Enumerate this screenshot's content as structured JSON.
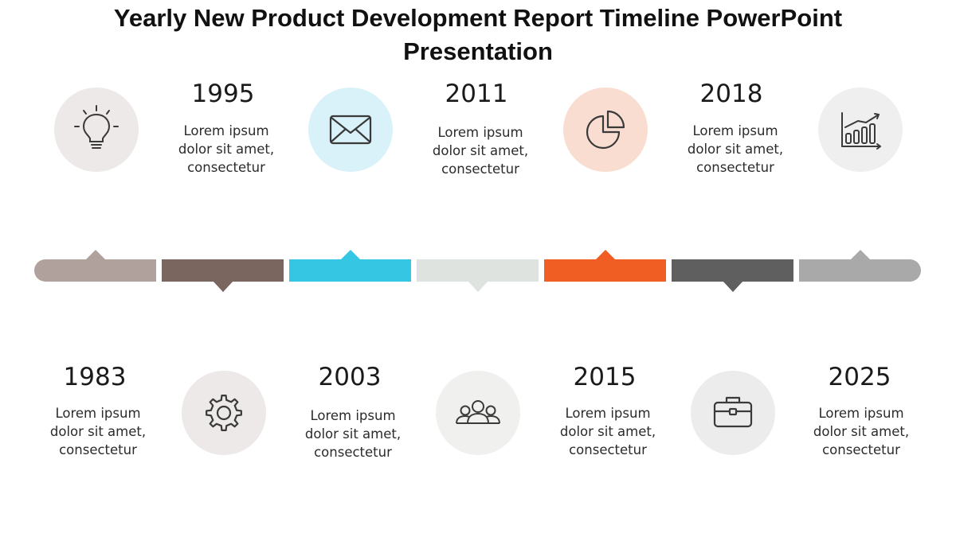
{
  "title": {
    "line1": "Yearly New Product Development Report Timeline PowerPoint",
    "line2": "Presentation"
  },
  "top_items": [
    {
      "year": "1995",
      "desc": [
        "Lorem ipsum",
        "dolor sit amet,",
        "consectetur"
      ],
      "icon": "lightbulb-icon",
      "circle_color": "#ece9e8"
    },
    {
      "year": "2011",
      "desc": [
        "Lorem ipsum",
        "dolor sit amet,",
        "consectetur"
      ],
      "icon": "envelope-icon",
      "circle_color": "#d9f1f9"
    },
    {
      "year": "2018",
      "desc": [
        "Lorem ipsum",
        "dolor sit amet,",
        "consectetur"
      ],
      "icon": "pie-chart-icon",
      "circle_color": "#f9ddd0"
    },
    {
      "year": "",
      "desc": [],
      "icon": "bar-chart-icon",
      "circle_color": "#efefef"
    }
  ],
  "bottom_items": [
    {
      "year": "1983",
      "desc": [
        "Lorem ipsum",
        "dolor sit amet,",
        "consectetur"
      ]
    },
    {
      "year": "2003",
      "desc": [
        "Lorem ipsum",
        "dolor sit amet,",
        "consectetur"
      ],
      "icon": "gear-icon",
      "circle_color": "#ece9e8"
    },
    {
      "year": "2015",
      "desc": [
        "Lorem ipsum",
        "dolor sit amet,",
        "consectetur"
      ],
      "icon": "team-icon",
      "circle_color": "#f0f0ef"
    },
    {
      "year": "2025",
      "desc": [
        "Lorem ipsum",
        "dolor sit amet,",
        "consectetur"
      ],
      "icon": "briefcase-icon",
      "circle_color": "#ececec"
    }
  ],
  "timeline_segments": [
    {
      "color": "#b1a19c",
      "pointer": "up"
    },
    {
      "color": "#7b655f",
      "pointer": "down"
    },
    {
      "color": "#35c6e3",
      "pointer": "up"
    },
    {
      "color": "#dfe3df",
      "pointer": "down"
    },
    {
      "color": "#f05e23",
      "pointer": "up"
    },
    {
      "color": "#5f5f5f",
      "pointer": "down"
    },
    {
      "color": "#a9a9a9",
      "pointer": "up"
    }
  ],
  "icon_stroke_color": "#3a3a3a"
}
